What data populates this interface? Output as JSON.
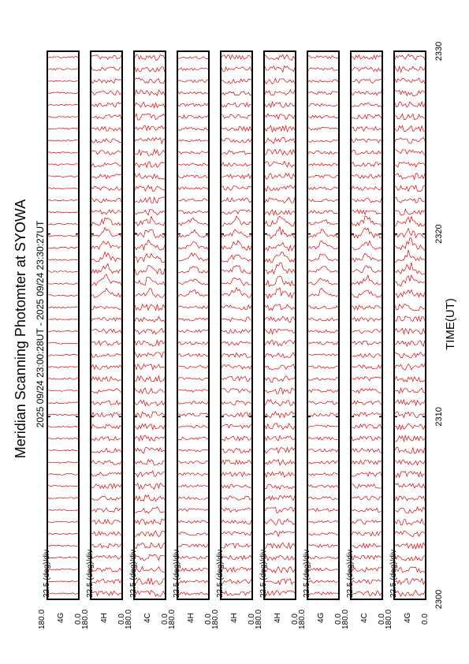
{
  "title": "Meridian Scanning Photomter at SYOWA",
  "time_range": "2025 09/24 23:00:28UT - 2025 09/24 23:30:27UT",
  "xlabel": "TIME(UT)",
  "x_ticks": [
    "2300",
    "2310",
    "2320",
    "2330"
  ],
  "scale_label": "22.5 (deg)/div",
  "y_top_label": "180.0",
  "y_bottom_label": "0.0",
  "colors": {
    "trace": "#e00000",
    "frame": "#000000"
  },
  "panels": [
    {
      "channel": "4G",
      "scale_label": "22.5 (deg)/div"
    },
    {
      "channel": "4H",
      "scale_label": "22.5 (deg)/div"
    },
    {
      "channel": "4C",
      "scale_label": "22.5 (deg)/div"
    },
    {
      "channel": "4H",
      "scale_label": "22.5 (deg)/div"
    },
    {
      "channel": "4H",
      "scale_label": "22.5 (deg)/div"
    },
    {
      "channel": "4H",
      "scale_label": "22.5 (deg)/div"
    },
    {
      "channel": "4G",
      "scale_label": "22.5 (deg)/div"
    },
    {
      "channel": "4C",
      "scale_label": "22.5 (deg)/div"
    },
    {
      "channel": "4G",
      "scale_label": "22.5 (deg)/div"
    }
  ],
  "chart_data": {
    "type": "line",
    "title": "Meridian Scanning Photomter at SYOWA",
    "xlabel": "TIME(UT)",
    "x_ticks": [
      "2300",
      "2310",
      "2320",
      "2330"
    ],
    "xlim": [
      "2300",
      "2330"
    ],
    "ylim": [
      0.0,
      180.0
    ],
    "n_panels": 9,
    "n_scans_per_panel": 46,
    "grid": false,
    "legend": "none"
  }
}
